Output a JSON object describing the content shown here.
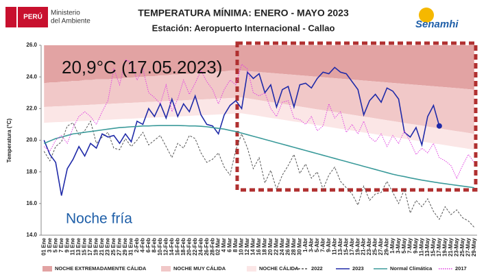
{
  "header": {
    "peru": "PERÚ",
    "ministerio": [
      "Ministerio",
      "del Ambiente"
    ],
    "senamhi": "Senamhi"
  },
  "chart_data": {
    "type": "line",
    "title": "TEMPERATURA MÍNIMA:  ENERO - MAYO 2023",
    "subtitle": "Estación: Aeropuerto Internacional - Callao",
    "y_label": "Temperatura (°C)",
    "annotations": [
      "20,9°C (17.05.2023)",
      "Noche fría"
    ],
    "categories": [
      "01 Ene",
      "3 Ene",
      "5 Ene",
      "7 Ene",
      "9 Ene",
      "11 Ene",
      "13 Ene",
      "15 Ene",
      "17 Ene",
      "19 Ene",
      "21 Ene",
      "23 Ene",
      "25 Ene",
      "27 Ene",
      "29 Ene",
      "31 Ene",
      "2-Feb",
      "4-Feb",
      "6-Feb",
      "8-Feb",
      "10-Feb",
      "12-Feb",
      "14-Feb",
      "16-Feb",
      "18-Feb",
      "20-Feb",
      "22-Feb",
      "24-Feb",
      "26-Feb",
      "28-Feb",
      "02 Mar",
      "4 Mar",
      "6 Mar",
      "8 Mar",
      "10 Mar",
      "12 Mar",
      "14 Mar",
      "16 Mar",
      "18 Mar",
      "20 Mar",
      "22 Mar",
      "24 Mar",
      "26 Mar",
      "28 Mar",
      "30 Mar",
      "1-Abr",
      "3-Abr",
      "5-Abr",
      "7-Abr",
      "9-Abr",
      "11-Abr",
      "13-Abr",
      "15-Abr",
      "17-Abr",
      "19-Abr",
      "21-Abr",
      "23-Abr",
      "25-Abr",
      "27-Abr",
      "29-Abr",
      "1-May",
      "3-May",
      "5-May",
      "7-May",
      "9-May",
      "11-May",
      "13-May",
      "15-May",
      "17-May",
      "19-May",
      "21-May",
      "23-May",
      "25-May",
      "27-May",
      "29-May"
    ],
    "ylim": [
      14,
      26
    ],
    "yticks": [
      {
        "value": 14,
        "label": "14.0"
      },
      {
        "value": 16,
        "label": "16.0"
      },
      {
        "value": 18,
        "label": "18.0"
      },
      {
        "value": 20,
        "label": "20.0"
      },
      {
        "value": 22,
        "label": "22.0"
      },
      {
        "value": 24,
        "label": "24.0"
      },
      {
        "value": 26,
        "label": "26.0"
      }
    ],
    "bands": [
      {
        "name": "NOCHE EXTREMADAMENTE CÁLIDA",
        "color": "#e2a3a3",
        "values": [
          23.6,
          23.65,
          23.65,
          23.7,
          23.7,
          23.75,
          23.75,
          23.8,
          23.8,
          23.85,
          23.85,
          23.85,
          23.9,
          23.9,
          23.95,
          23.95,
          24.0,
          24.0,
          24.05,
          24.05,
          24.1,
          24.1,
          24.15,
          24.15,
          24.2,
          24.2,
          24.25,
          24.25,
          24.3,
          24.3,
          24.35,
          24.35,
          24.4,
          24.4,
          24.4,
          24.37,
          24.34,
          24.31,
          24.28,
          24.25,
          24.22,
          24.19,
          24.16,
          24.13,
          24.1,
          24.07,
          24.04,
          24.01,
          23.98,
          23.95,
          23.92,
          23.89,
          23.86,
          23.83,
          23.8,
          23.77,
          23.74,
          23.71,
          23.68,
          23.65,
          23.62,
          23.59,
          23.56,
          23.53,
          23.5,
          23.47,
          23.44,
          23.41,
          23.38,
          23.35,
          23.32,
          23.29,
          23.26,
          23.23,
          23.2
        ]
      },
      {
        "name": "NOCHE MUY CÁLIDA",
        "color": "#f1c8c8",
        "values": [
          22.1,
          22.12,
          22.14,
          22.15,
          22.17,
          22.19,
          22.21,
          22.22,
          22.24,
          22.26,
          22.28,
          22.29,
          22.31,
          22.33,
          22.35,
          22.36,
          22.38,
          22.4,
          22.42,
          22.43,
          22.45,
          22.47,
          22.49,
          22.5,
          22.52,
          22.54,
          22.56,
          22.57,
          22.59,
          22.61,
          22.63,
          22.64,
          22.66,
          22.68,
          22.7,
          22.64,
          22.59,
          22.53,
          22.47,
          22.41,
          22.36,
          22.3,
          22.24,
          22.18,
          22.13,
          22.07,
          22.01,
          21.95,
          21.9,
          21.84,
          21.78,
          21.72,
          21.67,
          21.61,
          21.55,
          21.49,
          21.44,
          21.38,
          21.32,
          21.26,
          21.21,
          21.15,
          21.09,
          21.03,
          20.98,
          20.92,
          20.86,
          20.8,
          20.75,
          20.69,
          20.63,
          20.57,
          20.52,
          20.46,
          20.4
        ]
      },
      {
        "name": "NOCHE CÁLIDA",
        "color": "#fbe6e6",
        "values": [
          21.1,
          21.12,
          21.14,
          21.15,
          21.17,
          21.19,
          21.21,
          21.22,
          21.24,
          21.26,
          21.28,
          21.29,
          21.31,
          21.33,
          21.35,
          21.36,
          21.38,
          21.4,
          21.42,
          21.43,
          21.45,
          21.47,
          21.49,
          21.5,
          21.52,
          21.54,
          21.56,
          21.57,
          21.59,
          21.61,
          21.63,
          21.64,
          21.66,
          21.68,
          21.7,
          21.64,
          21.59,
          21.53,
          21.47,
          21.41,
          21.36,
          21.3,
          21.24,
          21.18,
          21.13,
          21.07,
          21.01,
          20.95,
          20.9,
          20.84,
          20.78,
          20.72,
          20.67,
          20.61,
          20.55,
          20.49,
          20.44,
          20.38,
          20.32,
          20.26,
          20.21,
          20.15,
          20.09,
          20.03,
          19.98,
          19.92,
          19.86,
          19.8,
          19.75,
          19.69,
          19.63,
          19.57,
          19.52,
          19.46,
          19.4
        ]
      }
    ],
    "series": [
      {
        "name": "2022",
        "color": "#555555",
        "style": "dashed",
        "values": [
          19.3,
          18.7,
          19.6,
          19.9,
          20.9,
          21.1,
          20.3,
          20.6,
          21.2,
          19.8,
          20.2,
          20.5,
          19.5,
          19.4,
          20.1,
          19.6,
          20.0,
          20.5,
          19.7,
          20.0,
          20.3,
          19.6,
          18.9,
          19.8,
          19.5,
          20.3,
          20.1,
          19.2,
          18.6,
          18.8,
          19.2,
          18.3,
          17.8,
          19.4,
          20.4,
          19.5,
          18.2,
          18.9,
          17.3,
          18.1,
          16.9,
          17.8,
          18.4,
          19.1,
          17.9,
          18.5,
          17.6,
          18.0,
          16.9,
          17.8,
          18.3,
          17.4,
          17.0,
          16.6,
          15.9,
          17.1,
          16.2,
          16.6,
          16.7,
          17.4,
          16.7,
          16.0,
          16.9,
          15.4,
          16.2,
          15.8,
          16.3,
          15.5,
          15.0,
          15.8,
          15.3,
          15.6,
          15.1,
          14.9,
          14.5
        ]
      },
      {
        "name": "2023",
        "color": "#1f2aa8",
        "style": "solid",
        "end_marker": true,
        "values": [
          20.0,
          19.1,
          18.6,
          16.5,
          18.2,
          18.8,
          19.6,
          19.0,
          19.8,
          19.5,
          20.4,
          20.2,
          20.3,
          19.8,
          20.4,
          19.9,
          21.2,
          21.0,
          22.0,
          21.5,
          22.3,
          21.4,
          22.6,
          21.5,
          22.3,
          21.8,
          22.8,
          21.6,
          21.0,
          20.9,
          20.4,
          21.6,
          22.2,
          22.5,
          22.0,
          24.3,
          23.9,
          24.2,
          23.0,
          23.5,
          22.1,
          23.2,
          23.4,
          22.1,
          23.5,
          23.6,
          23.3,
          23.9,
          24.3,
          24.2,
          24.6,
          24.3,
          24.2,
          23.7,
          23.2,
          21.6,
          22.5,
          22.9,
          22.4,
          23.3,
          23.1,
          22.6,
          20.5,
          20.2,
          20.8,
          19.7,
          21.5,
          22.2,
          20.9,
          null,
          null,
          null,
          null,
          null,
          null
        ]
      },
      {
        "name": "Normal Climática",
        "color": "#3a9a9a",
        "style": "solid",
        "values": [
          19.8,
          19.95,
          20.1,
          20.2,
          20.3,
          20.4,
          20.45,
          20.5,
          20.55,
          20.6,
          20.65,
          20.7,
          20.75,
          20.8,
          20.82,
          20.85,
          20.87,
          20.9,
          20.9,
          20.92,
          20.93,
          20.93,
          20.93,
          20.93,
          20.92,
          20.9,
          20.9,
          20.88,
          20.85,
          20.8,
          20.75,
          20.7,
          20.62,
          20.55,
          20.45,
          20.35,
          20.25,
          20.15,
          20.05,
          19.95,
          19.85,
          19.75,
          19.65,
          19.55,
          19.45,
          19.35,
          19.25,
          19.15,
          19.05,
          18.95,
          18.85,
          18.75,
          18.65,
          18.55,
          18.45,
          18.35,
          18.25,
          18.15,
          18.05,
          17.95,
          17.85,
          17.77,
          17.7,
          17.62,
          17.55,
          17.48,
          17.42,
          17.36,
          17.3,
          17.25,
          17.2,
          17.15,
          17.1,
          17.05,
          17.0
        ]
      },
      {
        "name": "2017",
        "color": "#e040e0",
        "style": "dotted",
        "values": [
          19.6,
          19.3,
          20.0,
          20.3,
          19.8,
          20.8,
          21.5,
          21.8,
          21.5,
          21.0,
          21.8,
          22.5,
          24.5,
          23.5,
          25.1,
          24.9,
          23.8,
          24.5,
          23.0,
          22.7,
          22.3,
          23.5,
          21.8,
          22.6,
          23.8,
          22.9,
          23.6,
          24.4,
          23.7,
          23.2,
          22.3,
          23.2,
          23.8,
          23.5,
          24.8,
          24.5,
          23.0,
          22.8,
          23.0,
          22.0,
          21.5,
          22.4,
          22.5,
          21.4,
          21.3,
          21.0,
          21.5,
          20.6,
          20.9,
          22.3,
          21.4,
          21.8,
          20.5,
          21.0,
          20.4,
          21.2,
          20.2,
          19.9,
          20.4,
          19.6,
          20.3,
          19.8,
          20.6,
          19.9,
          19.1,
          19.5,
          19.2,
          19.8,
          18.9,
          18.7,
          18.4,
          17.6,
          18.4,
          19.1,
          18.6
        ]
      }
    ]
  }
}
